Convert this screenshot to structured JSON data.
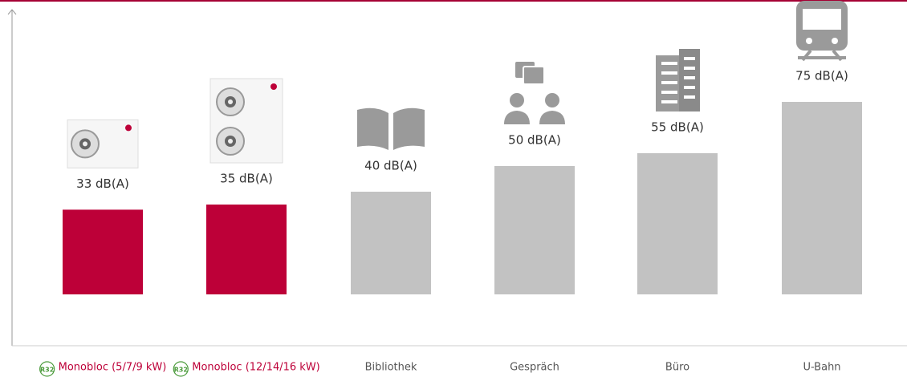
{
  "chart_data": {
    "type": "bar",
    "categories": [
      "Monobloc (5/7/9 kW)",
      "Monobloc (12/14/16 kW)",
      "Bibliothek",
      "Gespräch",
      "Büro",
      "U-Bahn"
    ],
    "values": [
      33,
      35,
      40,
      50,
      55,
      75
    ],
    "value_labels": [
      "33 dB(A)",
      "35 dB(A)",
      "40 dB(A)",
      "50 dB(A)",
      "55 dB(A)",
      "75 dB(A)"
    ],
    "colors": [
      "#bd0038",
      "#bd0038",
      "#c2c2c2",
      "#c2c2c2",
      "#c2c2c2",
      "#c2c2c2"
    ],
    "badges": [
      "R32",
      "R32",
      null,
      null,
      null,
      null
    ],
    "ylim": [
      -20,
      110
    ]
  }
}
